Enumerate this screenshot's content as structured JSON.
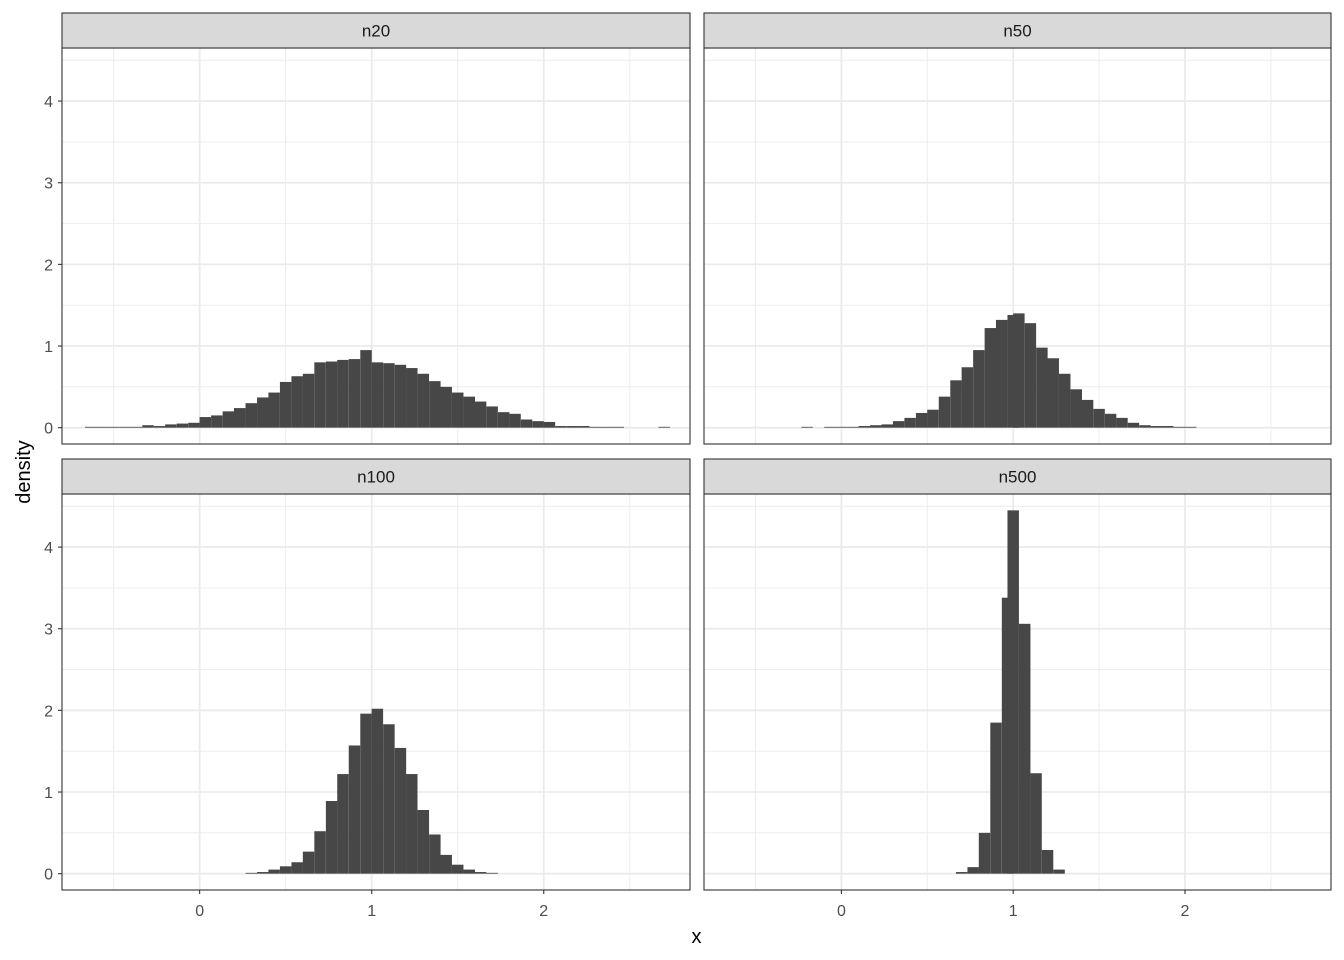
{
  "chart_data": {
    "type": "histogram",
    "facet_layout": "2x2 grid",
    "xlabel": "x",
    "ylabel": "density",
    "xlim": [
      -0.8,
      2.85
    ],
    "ylim": [
      -0.2,
      4.65
    ],
    "x_ticks": [
      0,
      1,
      2
    ],
    "x_tick_labels": [
      "0",
      "1",
      "2"
    ],
    "y_ticks": [
      0,
      1,
      2,
      3,
      4
    ],
    "y_tick_labels": [
      "0",
      "1",
      "2",
      "3",
      "4"
    ],
    "grid": true,
    "bar_color": "#474747",
    "panels": [
      {
        "label": "n20",
        "bin_width": 0.0667,
        "bins": [
          {
            "x": -0.633,
            "y": 0.01
          },
          {
            "x": -0.567,
            "y": 0.01
          },
          {
            "x": -0.5,
            "y": 0.01
          },
          {
            "x": -0.433,
            "y": 0.01
          },
          {
            "x": -0.367,
            "y": 0.01
          },
          {
            "x": -0.3,
            "y": 0.03
          },
          {
            "x": -0.233,
            "y": 0.02
          },
          {
            "x": -0.167,
            "y": 0.04
          },
          {
            "x": -0.1,
            "y": 0.05
          },
          {
            "x": -0.033,
            "y": 0.06
          },
          {
            "x": 0.033,
            "y": 0.13
          },
          {
            "x": 0.1,
            "y": 0.15
          },
          {
            "x": 0.167,
            "y": 0.2
          },
          {
            "x": 0.233,
            "y": 0.24
          },
          {
            "x": 0.3,
            "y": 0.3
          },
          {
            "x": 0.367,
            "y": 0.37
          },
          {
            "x": 0.433,
            "y": 0.43
          },
          {
            "x": 0.5,
            "y": 0.56
          },
          {
            "x": 0.567,
            "y": 0.63
          },
          {
            "x": 0.633,
            "y": 0.66
          },
          {
            "x": 0.7,
            "y": 0.8
          },
          {
            "x": 0.767,
            "y": 0.81
          },
          {
            "x": 0.833,
            "y": 0.83
          },
          {
            "x": 0.9,
            "y": 0.84
          },
          {
            "x": 0.967,
            "y": 0.95
          },
          {
            "x": 1.033,
            "y": 0.8
          },
          {
            "x": 1.1,
            "y": 0.79
          },
          {
            "x": 1.167,
            "y": 0.77
          },
          {
            "x": 1.233,
            "y": 0.73
          },
          {
            "x": 1.3,
            "y": 0.66
          },
          {
            "x": 1.367,
            "y": 0.57
          },
          {
            "x": 1.433,
            "y": 0.5
          },
          {
            "x": 1.5,
            "y": 0.43
          },
          {
            "x": 1.567,
            "y": 0.38
          },
          {
            "x": 1.633,
            "y": 0.32
          },
          {
            "x": 1.7,
            "y": 0.26
          },
          {
            "x": 1.767,
            "y": 0.19
          },
          {
            "x": 1.833,
            "y": 0.17
          },
          {
            "x": 1.9,
            "y": 0.1
          },
          {
            "x": 1.967,
            "y": 0.08
          },
          {
            "x": 2.033,
            "y": 0.07
          },
          {
            "x": 2.1,
            "y": 0.02
          },
          {
            "x": 2.167,
            "y": 0.02
          },
          {
            "x": 2.233,
            "y": 0.02
          },
          {
            "x": 2.3,
            "y": 0.01
          },
          {
            "x": 2.367,
            "y": 0.01
          },
          {
            "x": 2.433,
            "y": 0.01
          },
          {
            "x": 2.7,
            "y": 0.01
          }
        ]
      },
      {
        "label": "n50",
        "bin_width": 0.0667,
        "bins": [
          {
            "x": -0.2,
            "y": 0.01
          },
          {
            "x": -0.067,
            "y": 0.01
          },
          {
            "x": 0.0,
            "y": 0.01
          },
          {
            "x": 0.067,
            "y": 0.01
          },
          {
            "x": 0.133,
            "y": 0.02
          },
          {
            "x": 0.2,
            "y": 0.03
          },
          {
            "x": 0.267,
            "y": 0.04
          },
          {
            "x": 0.333,
            "y": 0.08
          },
          {
            "x": 0.4,
            "y": 0.12
          },
          {
            "x": 0.467,
            "y": 0.18
          },
          {
            "x": 0.533,
            "y": 0.22
          },
          {
            "x": 0.6,
            "y": 0.38
          },
          {
            "x": 0.667,
            "y": 0.58
          },
          {
            "x": 0.733,
            "y": 0.74
          },
          {
            "x": 0.8,
            "y": 0.95
          },
          {
            "x": 0.867,
            "y": 1.22
          },
          {
            "x": 0.933,
            "y": 1.32
          },
          {
            "x": 1.0,
            "y": 1.38
          },
          {
            "x": 1.033,
            "y": 1.4
          },
          {
            "x": 1.1,
            "y": 1.28
          },
          {
            "x": 1.167,
            "y": 0.98
          },
          {
            "x": 1.233,
            "y": 0.85
          },
          {
            "x": 1.3,
            "y": 0.66
          },
          {
            "x": 1.367,
            "y": 0.47
          },
          {
            "x": 1.433,
            "y": 0.34
          },
          {
            "x": 1.5,
            "y": 0.23
          },
          {
            "x": 1.567,
            "y": 0.17
          },
          {
            "x": 1.633,
            "y": 0.12
          },
          {
            "x": 1.7,
            "y": 0.06
          },
          {
            "x": 1.767,
            "y": 0.03
          },
          {
            "x": 1.833,
            "y": 0.02
          },
          {
            "x": 1.9,
            "y": 0.02
          },
          {
            "x": 1.967,
            "y": 0.01
          },
          {
            "x": 2.033,
            "y": 0.01
          }
        ]
      },
      {
        "label": "n100",
        "bin_width": 0.0667,
        "bins": [
          {
            "x": 0.3,
            "y": 0.01
          },
          {
            "x": 0.367,
            "y": 0.02
          },
          {
            "x": 0.433,
            "y": 0.05
          },
          {
            "x": 0.5,
            "y": 0.09
          },
          {
            "x": 0.567,
            "y": 0.14
          },
          {
            "x": 0.633,
            "y": 0.27
          },
          {
            "x": 0.7,
            "y": 0.52
          },
          {
            "x": 0.767,
            "y": 0.89
          },
          {
            "x": 0.833,
            "y": 1.22
          },
          {
            "x": 0.9,
            "y": 1.57
          },
          {
            "x": 0.967,
            "y": 1.96
          },
          {
            "x": 1.033,
            "y": 2.02
          },
          {
            "x": 1.1,
            "y": 1.83
          },
          {
            "x": 1.167,
            "y": 1.54
          },
          {
            "x": 1.233,
            "y": 1.22
          },
          {
            "x": 1.3,
            "y": 0.78
          },
          {
            "x": 1.367,
            "y": 0.48
          },
          {
            "x": 1.433,
            "y": 0.23
          },
          {
            "x": 1.5,
            "y": 0.11
          },
          {
            "x": 1.567,
            "y": 0.05
          },
          {
            "x": 1.633,
            "y": 0.02
          },
          {
            "x": 1.7,
            "y": 0.01
          }
        ]
      },
      {
        "label": "n500",
        "bin_width": 0.0667,
        "bins": [
          {
            "x": 0.7,
            "y": 0.02
          },
          {
            "x": 0.767,
            "y": 0.08
          },
          {
            "x": 0.833,
            "y": 0.5
          },
          {
            "x": 0.9,
            "y": 1.85
          },
          {
            "x": 0.967,
            "y": 3.38
          },
          {
            "x": 1.0,
            "y": 4.45
          },
          {
            "x": 1.067,
            "y": 3.06
          },
          {
            "x": 1.133,
            "y": 1.23
          },
          {
            "x": 1.2,
            "y": 0.29
          },
          {
            "x": 1.267,
            "y": 0.05
          }
        ]
      }
    ]
  }
}
